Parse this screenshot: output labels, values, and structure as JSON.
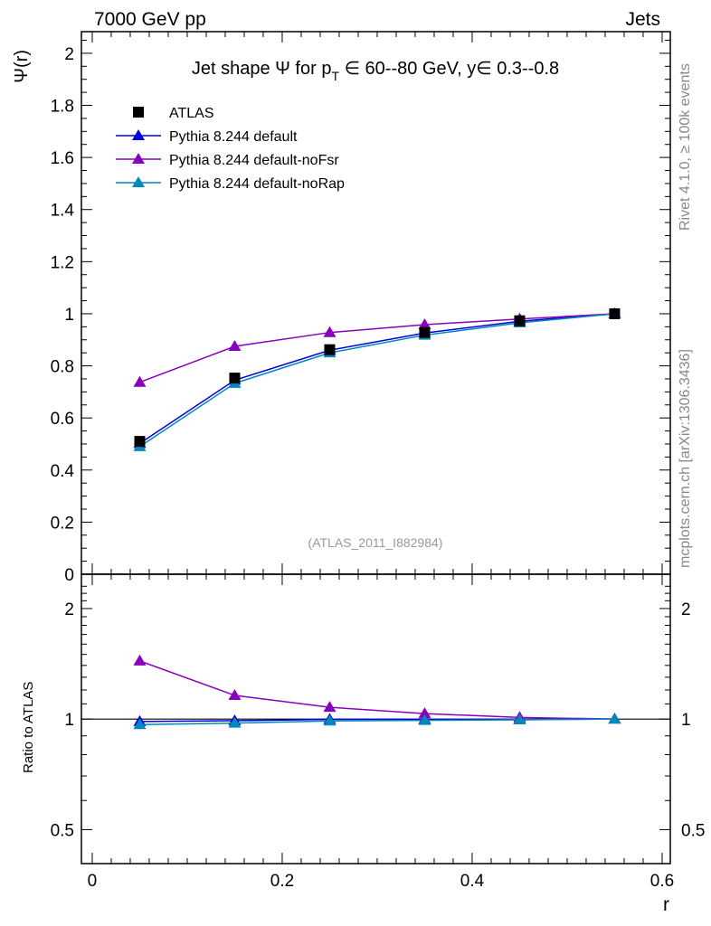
{
  "header": {
    "left": "7000 GeV pp",
    "right": "Jets"
  },
  "side_labels": {
    "top": "Rivet 4.1.0, ≥ 100k events",
    "bottom": "mcplots.cern.ch [arXiv:1306.3436]"
  },
  "watermark": "(ATLAS_2011_I882984)",
  "chart_data": [
    {
      "type": "line",
      "title": "Jet shape Ψ for p_T ∈ 60--80 GeV, y∈ 0.3--0.8",
      "title_parts": {
        "a": "Jet shape Ψ for p",
        "sub": "T",
        "b": " ∈ 60--80 GeV, y∈ 0.3--0.8"
      },
      "ylabel": "Ψ(r)",
      "xlabel": "r",
      "xlim": [
        -0.0114,
        0.6086
      ],
      "ylim": [
        0,
        2.083
      ],
      "yticks": [
        0,
        0.2,
        0.4,
        0.6,
        0.8,
        1,
        1.2,
        1.4,
        1.6,
        1.8,
        2
      ],
      "ytick_labels": [
        "0",
        "0.2",
        "0.4",
        "0.6",
        "0.8",
        "1",
        "1.2",
        "1.4",
        "1.6",
        "1.8",
        "2"
      ],
      "legend_position": "top-left",
      "x": [
        0.05,
        0.15,
        0.25,
        0.35,
        0.45,
        0.55
      ],
      "series": [
        {
          "name": "ATLAS",
          "marker": "square",
          "color": "#000000",
          "values": [
            0.51,
            0.753,
            0.862,
            0.928,
            0.973,
            1.0
          ]
        },
        {
          "name": "Pythia 8.244 default",
          "marker": "triangle",
          "color": "#0000dd",
          "values": [
            0.502,
            0.745,
            0.86,
            0.926,
            0.971,
            1.0
          ]
        },
        {
          "name": "Pythia 8.244 default-noFsr",
          "marker": "triangle",
          "color": "#8800bb",
          "values": [
            0.737,
            0.875,
            0.928,
            0.958,
            0.98,
            1.0
          ]
        },
        {
          "name": "Pythia 8.244 default-noRap",
          "marker": "triangle",
          "color": "#0088bb",
          "values": [
            0.49,
            0.733,
            0.85,
            0.918,
            0.965,
            1.0
          ]
        }
      ]
    },
    {
      "type": "line",
      "ylabel": "Ratio to ATLAS",
      "xlabel": "r",
      "yscale": "log",
      "xlim": [
        -0.0114,
        0.6086
      ],
      "ylim": [
        0.404,
        2.48
      ],
      "yticks": [
        0.5,
        1,
        2
      ],
      "ytick_labels": [
        "0.5",
        "1",
        "2"
      ],
      "xticks": [
        0,
        0.2,
        0.4,
        0.6
      ],
      "xtick_labels": [
        "0",
        "0.2",
        "0.4",
        "0.6"
      ],
      "x": [
        0.05,
        0.15,
        0.25,
        0.35,
        0.45,
        0.55
      ],
      "series": [
        {
          "name": "Pythia 8.244 default",
          "color": "#0000dd",
          "values": [
            0.985,
            0.99,
            0.998,
            0.998,
            0.998,
            1.0
          ]
        },
        {
          "name": "Pythia 8.244 default-noFsr",
          "color": "#8800bb",
          "values": [
            1.44,
            1.16,
            1.077,
            1.035,
            1.01,
            1.0
          ]
        },
        {
          "name": "Pythia 8.244 default-noRap",
          "color": "#0088bb",
          "values": [
            0.966,
            0.975,
            0.988,
            0.992,
            0.995,
            1.0
          ]
        }
      ]
    }
  ]
}
